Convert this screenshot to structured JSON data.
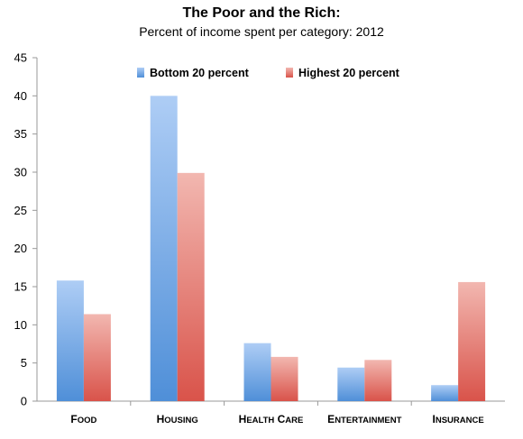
{
  "chart_data": {
    "type": "bar",
    "title": "The Poor and the Rich:",
    "subtitle": "Percent of income spent per category: 2012",
    "categories": [
      "Food",
      "Housing",
      "Health care",
      "Entertainment",
      "Insurance"
    ],
    "series": [
      {
        "name": "Bottom 20 percent",
        "values": [
          15.8,
          40.0,
          7.6,
          4.4,
          2.1
        ]
      },
      {
        "name": "Highest 20 percent",
        "values": [
          11.4,
          29.9,
          5.8,
          5.4,
          15.6
        ]
      }
    ],
    "ylim": [
      0,
      45
    ],
    "yticks": [
      0,
      5,
      10,
      15,
      20,
      25,
      30,
      35,
      40,
      45
    ],
    "grid": false,
    "legend_position": "top-center",
    "colors": {
      "series0_top": "#aecdf5",
      "series0_bottom": "#4f8fd8",
      "series1_top": "#f2b7b0",
      "series1_bottom": "#d9534a",
      "axis": "#999999"
    }
  }
}
